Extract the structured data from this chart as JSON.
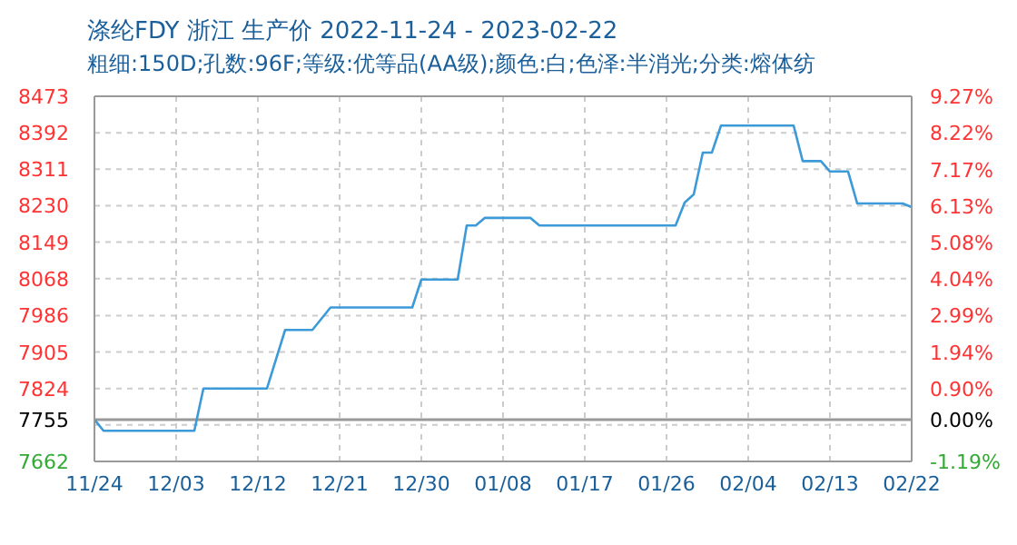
{
  "chart_data": {
    "type": "line",
    "title": "涤纶FDY 浙江 生产价 2022-11-24 - 2023-02-22",
    "subtitle": "粗细:150D;孔数:96F;等级:优等品(AA级);颜色:白;色泽:半消光;分类:熔体纺",
    "x": [
      "2022-11-24",
      "2022-11-25",
      "2022-12-05",
      "2022-12-06",
      "2022-12-13",
      "2022-12-15",
      "2022-12-18",
      "2022-12-20",
      "2022-12-29",
      "2022-12-30",
      "2023-01-03",
      "2023-01-04",
      "2023-01-05",
      "2023-01-06",
      "2023-01-11",
      "2023-01-12",
      "2023-01-27",
      "2023-01-28",
      "2023-01-29",
      "2023-01-30",
      "2023-01-31",
      "2023-02-01",
      "2023-02-09",
      "2023-02-10",
      "2023-02-12",
      "2023-02-13",
      "2023-02-15",
      "2023-02-16",
      "2023-02-21",
      "2023-02-22"
    ],
    "series": [
      {
        "color": "#3d9ad8",
        "values": [
          7755,
          7730,
          7730,
          7824,
          7824,
          7954,
          7954,
          8004,
          8004,
          8066,
          8066,
          8186,
          8186,
          8203,
          8203,
          8186,
          8186,
          8237,
          8255,
          8348,
          8348,
          8408,
          8408,
          8329,
          8329,
          8306,
          8306,
          8235,
          8235,
          8227
        ]
      }
    ],
    "xlim": [
      "2022-11-24",
      "2023-02-22"
    ],
    "xticks": [
      {
        "value": "2022-11-24",
        "label": "11/24"
      },
      {
        "value": "2022-12-03",
        "label": "12/03"
      },
      {
        "value": "2022-12-12",
        "label": "12/12"
      },
      {
        "value": "2022-12-21",
        "label": "12/21"
      },
      {
        "value": "2022-12-30",
        "label": "12/30"
      },
      {
        "value": "2023-01-08",
        "label": "01/08"
      },
      {
        "value": "2023-01-17",
        "label": "01/17"
      },
      {
        "value": "2023-01-26",
        "label": "01/26"
      },
      {
        "value": "2023-02-04",
        "label": "02/04"
      },
      {
        "value": "2023-02-13",
        "label": "02/13"
      },
      {
        "value": "2023-02-22",
        "label": "02/22"
      }
    ],
    "ylim": [
      7662,
      8473
    ],
    "yticks": [
      7662,
      {
        "value": 7743,
        "label": null
      },
      7755,
      7824,
      7905,
      7986,
      8068,
      8149,
      8230,
      8311,
      8392,
      8473
    ],
    "y2lim": [
      -1.19,
      9.27
    ],
    "y2ticks": [
      {
        "value": -1.19,
        "label": "-1.19%"
      },
      {
        "value": 0,
        "label": "0.00%"
      },
      {
        "value": 0.9,
        "label": "0.90%"
      },
      {
        "value": 1.94,
        "label": "1.94%"
      },
      {
        "value": 2.99,
        "label": "2.99%"
      },
      {
        "value": 4.04,
        "label": "4.04%"
      },
      {
        "value": 5.08,
        "label": "5.08%"
      },
      {
        "value": 6.13,
        "label": "6.13%"
      },
      {
        "value": 7.17,
        "label": "7.17%"
      },
      {
        "value": 8.22,
        "label": "8.22%"
      },
      {
        "value": 9.27,
        "label": "9.27%"
      }
    ],
    "ref_lines": [
      {
        "axis": "y",
        "value": 7755,
        "color": "#999999"
      }
    ],
    "grid": true,
    "marker": "none",
    "line_style": "solid"
  }
}
